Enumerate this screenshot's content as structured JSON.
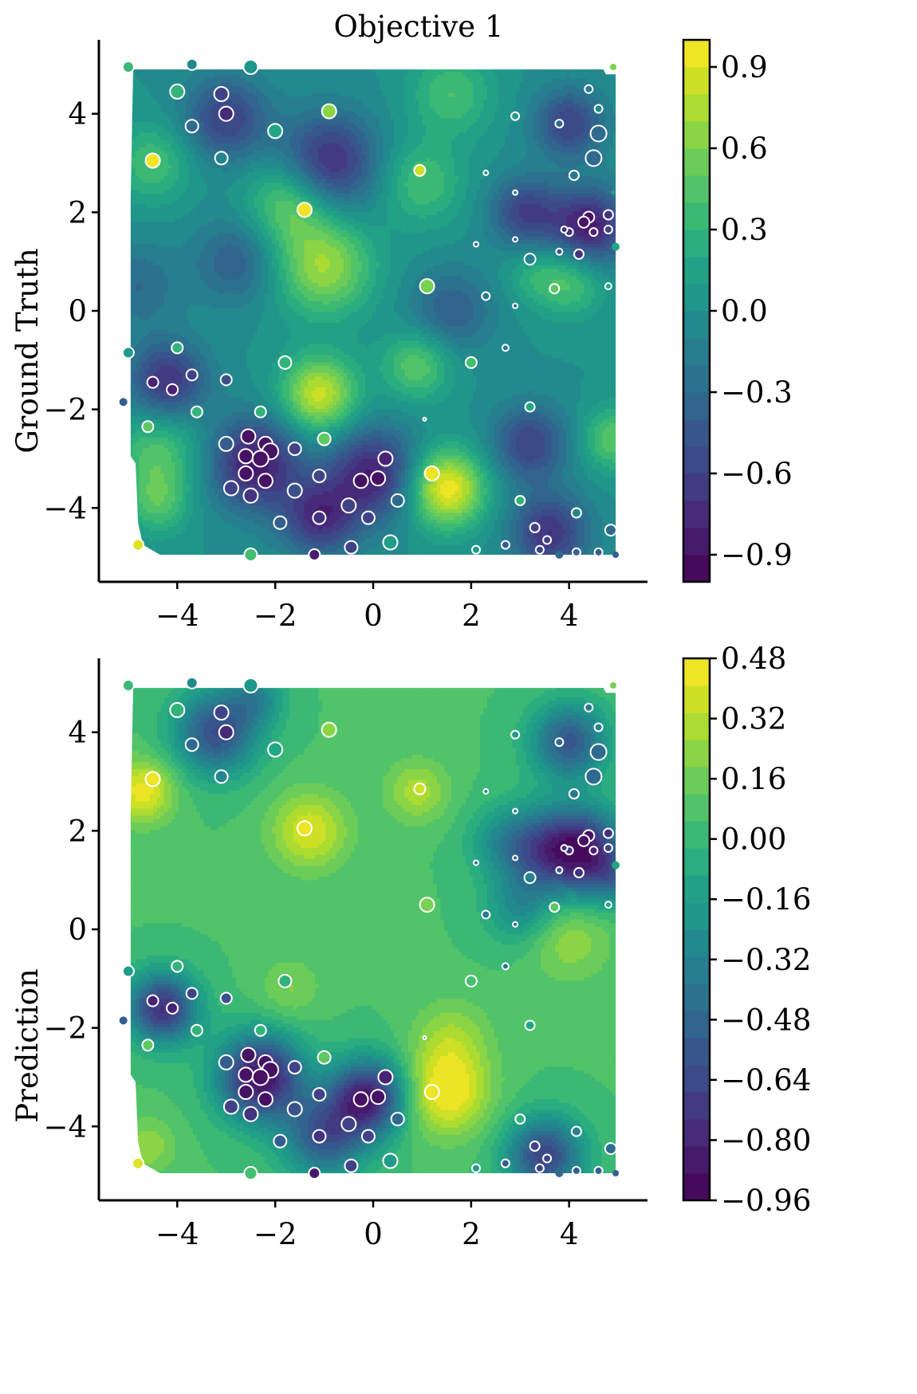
{
  "figure": {
    "title": "Objective 1"
  },
  "chart_data": [
    {
      "type": "heatmap",
      "subtype": "filled-contour-with-scatter",
      "title": "Objective 1",
      "ylabel": "Ground Truth",
      "xlabel": "",
      "xlim": [
        -5.6,
        5.6
      ],
      "ylim": [
        -5.5,
        5.5
      ],
      "xticks": [
        -4,
        -2,
        0,
        2,
        4
      ],
      "xtick_labels": [
        "−4",
        "−2",
        "0",
        "2",
        "4"
      ],
      "yticks": [
        4,
        2,
        0,
        -2,
        -4
      ],
      "ytick_labels": [
        "4",
        "2",
        "0",
        "−2",
        "−4"
      ],
      "colormap": "viridis",
      "colorbar": {
        "min": -1.0,
        "max": 1.0,
        "ticks": [
          0.9,
          0.6,
          0.3,
          0.0,
          -0.3,
          -0.6,
          -0.9
        ],
        "tick_labels": [
          "0.9",
          "0.6",
          "0.3",
          "0.0",
          "−0.3",
          "−0.6",
          "−0.9"
        ]
      },
      "blobs": [
        [
          -0.9,
          3.0,
          -0.75,
          0.7
        ],
        [
          -3.0,
          3.9,
          -0.6,
          0.6
        ],
        [
          -1.0,
          0.9,
          0.7,
          0.7
        ],
        [
          -1.7,
          2.2,
          0.55,
          0.6
        ],
        [
          -1.1,
          -1.7,
          0.85,
          0.55
        ],
        [
          1.5,
          -3.6,
          1.0,
          0.55
        ],
        [
          -2.4,
          -3.1,
          -0.85,
          0.65
        ],
        [
          0.0,
          -3.3,
          -0.8,
          0.65
        ],
        [
          -1.1,
          -4.2,
          -0.7,
          0.55
        ],
        [
          -4.2,
          -1.4,
          -0.7,
          0.55
        ],
        [
          4.4,
          1.7,
          -0.85,
          0.55
        ],
        [
          3.1,
          2.0,
          -0.6,
          0.5
        ],
        [
          4.0,
          3.8,
          -0.6,
          0.5
        ],
        [
          3.2,
          -2.7,
          -0.6,
          0.55
        ],
        [
          3.6,
          -4.5,
          -0.7,
          0.55
        ],
        [
          1.0,
          2.6,
          0.4,
          0.6
        ],
        [
          1.6,
          0.0,
          -0.4,
          0.6
        ],
        [
          4.0,
          0.6,
          0.45,
          0.5
        ],
        [
          0.9,
          -1.1,
          0.5,
          0.5
        ],
        [
          -4.4,
          -2.9,
          0.45,
          0.6
        ],
        [
          -4.4,
          -3.9,
          0.4,
          0.45
        ],
        [
          4.9,
          -2.6,
          0.5,
          0.45
        ],
        [
          -4.5,
          3.0,
          0.4,
          0.55
        ],
        [
          -4.8,
          0.5,
          -0.3,
          0.6
        ],
        [
          -2.8,
          1.0,
          -0.4,
          0.6
        ],
        [
          1.6,
          4.4,
          0.4,
          0.6
        ],
        [
          3.2,
          0.7,
          0.2,
          0.4
        ]
      ],
      "scatter": [
        [
          -5.0,
          4.95,
          0.35,
          7
        ],
        [
          -3.7,
          5.0,
          -0.05,
          7
        ],
        [
          -2.5,
          4.95,
          0.05,
          9
        ],
        [
          4.9,
          4.95,
          0.6,
          4
        ],
        [
          -4.0,
          4.45,
          0.3,
          9
        ],
        [
          -3.1,
          4.4,
          -0.6,
          9
        ],
        [
          -3.0,
          4.0,
          -0.75,
          9
        ],
        [
          -3.7,
          3.75,
          -0.3,
          8
        ],
        [
          -0.9,
          4.05,
          0.65,
          9
        ],
        [
          -2.0,
          3.65,
          0.2,
          9
        ],
        [
          -3.1,
          3.1,
          -0.1,
          8
        ],
        [
          -4.5,
          3.05,
          0.95,
          9
        ],
        [
          0.95,
          2.85,
          0.85,
          7
        ],
        [
          -1.4,
          2.05,
          0.95,
          9
        ],
        [
          4.4,
          4.5,
          -0.2,
          5
        ],
        [
          4.6,
          4.1,
          -0.1,
          5
        ],
        [
          3.8,
          3.8,
          -0.3,
          5
        ],
        [
          2.9,
          3.95,
          0.1,
          5
        ],
        [
          4.6,
          3.6,
          -0.3,
          10
        ],
        [
          4.5,
          3.1,
          -0.3,
          10
        ],
        [
          4.1,
          2.75,
          -0.2,
          6
        ],
        [
          2.3,
          2.8,
          0.0,
          3
        ],
        [
          2.9,
          2.4,
          -0.1,
          3
        ],
        [
          4.9,
          2.4,
          0.1,
          3
        ],
        [
          4.4,
          1.9,
          -0.9,
          7
        ],
        [
          4.3,
          1.8,
          -0.9,
          7
        ],
        [
          4.8,
          1.95,
          -0.7,
          6
        ],
        [
          4.0,
          1.6,
          -0.7,
          5
        ],
        [
          3.9,
          1.65,
          -0.7,
          4
        ],
        [
          4.5,
          1.6,
          -0.8,
          5
        ],
        [
          4.8,
          1.65,
          -0.6,
          5
        ],
        [
          4.2,
          1.15,
          -0.7,
          6
        ],
        [
          3.8,
          1.2,
          -0.4,
          4
        ],
        [
          2.9,
          1.45,
          -0.4,
          3
        ],
        [
          2.1,
          1.35,
          -0.3,
          3
        ],
        [
          4.95,
          1.3,
          0.2,
          5
        ],
        [
          3.2,
          1.05,
          -0.1,
          7
        ],
        [
          3.7,
          0.45,
          0.5,
          6
        ],
        [
          4.8,
          0.5,
          0.2,
          4
        ],
        [
          1.1,
          0.5,
          0.6,
          9
        ],
        [
          2.3,
          0.3,
          -0.2,
          5
        ],
        [
          2.9,
          0.1,
          -0.4,
          3
        ],
        [
          -5.0,
          -0.85,
          0.1,
          7
        ],
        [
          -4.0,
          -0.75,
          0.3,
          7
        ],
        [
          -1.8,
          -1.05,
          0.3,
          8
        ],
        [
          -3.7,
          -1.3,
          -0.6,
          7
        ],
        [
          -3.0,
          -1.4,
          -0.5,
          7
        ],
        [
          -4.5,
          -1.45,
          -0.8,
          7
        ],
        [
          -4.1,
          -1.6,
          -0.8,
          7
        ],
        [
          2.7,
          -0.75,
          -0.2,
          4
        ],
        [
          2.0,
          -1.05,
          0.4,
          7
        ],
        [
          -5.1,
          -1.85,
          -0.4,
          5
        ],
        [
          -3.6,
          -2.05,
          0.3,
          7
        ],
        [
          -2.3,
          -2.05,
          0.3,
          7
        ],
        [
          -4.6,
          -2.35,
          0.5,
          7
        ],
        [
          1.05,
          -2.2,
          0.1,
          2
        ],
        [
          3.2,
          -1.95,
          0.2,
          6
        ],
        [
          -1.0,
          -2.6,
          0.5,
          8
        ],
        [
          -3.0,
          -2.7,
          -0.4,
          9
        ],
        [
          -2.55,
          -2.55,
          -0.9,
          9
        ],
        [
          -2.2,
          -2.7,
          -0.9,
          9
        ],
        [
          -2.1,
          -2.85,
          -0.9,
          10
        ],
        [
          -2.6,
          -2.95,
          -0.9,
          9
        ],
        [
          -2.3,
          -3.0,
          -0.9,
          10
        ],
        [
          -1.6,
          -2.8,
          -0.6,
          8
        ],
        [
          -2.6,
          -3.3,
          -0.9,
          9
        ],
        [
          -2.2,
          -3.45,
          -0.9,
          9
        ],
        [
          -2.5,
          -3.75,
          -0.7,
          9
        ],
        [
          -2.9,
          -3.6,
          -0.6,
          9
        ],
        [
          -1.6,
          -3.65,
          -0.5,
          9
        ],
        [
          -1.1,
          -3.35,
          -0.6,
          8
        ],
        [
          -0.25,
          -3.45,
          -0.9,
          9
        ],
        [
          0.1,
          -3.4,
          -0.9,
          9
        ],
        [
          0.25,
          -3.0,
          -0.8,
          9
        ],
        [
          1.2,
          -3.3,
          0.95,
          9
        ],
        [
          0.5,
          -3.85,
          -0.3,
          8
        ],
        [
          -0.5,
          -3.95,
          -0.6,
          9
        ],
        [
          -0.1,
          -4.2,
          -0.6,
          8
        ],
        [
          -1.1,
          -4.2,
          -0.7,
          8
        ],
        [
          -1.9,
          -4.3,
          -0.4,
          8
        ],
        [
          0.35,
          -4.7,
          0.1,
          9
        ],
        [
          -0.45,
          -4.8,
          -0.6,
          8
        ],
        [
          -4.8,
          -4.75,
          0.9,
          7
        ],
        [
          -2.5,
          -4.95,
          0.4,
          8
        ],
        [
          -1.2,
          -4.95,
          -0.85,
          7
        ],
        [
          2.1,
          -4.85,
          0.1,
          5
        ],
        [
          3.0,
          -3.85,
          0.3,
          6
        ],
        [
          4.15,
          -4.1,
          -0.1,
          6
        ],
        [
          3.3,
          -4.4,
          -0.6,
          6
        ],
        [
          3.55,
          -4.65,
          -0.6,
          5
        ],
        [
          2.7,
          -4.75,
          -0.4,
          5
        ],
        [
          3.4,
          -4.85,
          -0.6,
          5
        ],
        [
          3.8,
          -4.95,
          -0.3,
          5
        ],
        [
          4.15,
          -4.9,
          -0.4,
          5
        ],
        [
          4.6,
          -4.9,
          -0.4,
          5
        ],
        [
          4.85,
          -4.45,
          -0.3,
          7
        ],
        [
          4.95,
          -4.95,
          -0.4,
          4
        ]
      ]
    },
    {
      "type": "heatmap",
      "subtype": "filled-contour-with-scatter",
      "title": "",
      "ylabel": "Prediction",
      "xlabel": "",
      "xlim": [
        -5.6,
        5.6
      ],
      "ylim": [
        -5.5,
        5.5
      ],
      "xticks": [
        -4,
        -2,
        0,
        2,
        4
      ],
      "xtick_labels": [
        "−4",
        "−2",
        "0",
        "2",
        "4"
      ],
      "yticks": [
        4,
        2,
        0,
        -2,
        -4
      ],
      "ytick_labels": [
        "4",
        "2",
        "0",
        "−2",
        "−4"
      ],
      "colormap": "viridis",
      "colorbar": {
        "min": -0.96,
        "max": 0.48,
        "ticks": [
          0.48,
          0.32,
          0.16,
          0.0,
          -0.16,
          -0.32,
          -0.48,
          -0.64,
          -0.8,
          -0.96
        ],
        "tick_labels": [
          "0.48",
          "0.32",
          "0.16",
          "0.00",
          "−0.16",
          "−0.32",
          "−0.48",
          "−0.64",
          "−0.80",
          "−0.96"
        ]
      },
      "base": 0.05,
      "blobs": [
        [
          -4.7,
          2.8,
          0.4,
          0.45
        ],
        [
          -1.3,
          2.0,
          0.35,
          0.55
        ],
        [
          0.9,
          2.8,
          0.25,
          0.45
        ],
        [
          1.5,
          -3.3,
          0.45,
          0.6
        ],
        [
          1.6,
          -2.2,
          0.2,
          0.55
        ],
        [
          4.0,
          -0.2,
          0.2,
          0.6
        ],
        [
          -4.6,
          -4.4,
          0.2,
          0.4
        ],
        [
          -3.2,
          4.0,
          -0.65,
          0.6
        ],
        [
          -2.4,
          4.7,
          -0.3,
          0.4
        ],
        [
          4.3,
          1.6,
          -0.8,
          0.6
        ],
        [
          3.4,
          1.6,
          -0.5,
          0.6
        ],
        [
          4.0,
          3.8,
          -0.6,
          0.55
        ],
        [
          2.6,
          1.8,
          -0.2,
          0.5
        ],
        [
          -4.3,
          -1.6,
          -0.8,
          0.5
        ],
        [
          -2.3,
          -3.0,
          -0.95,
          0.6
        ],
        [
          -0.1,
          -3.4,
          -0.85,
          0.55
        ],
        [
          -1.0,
          -4.2,
          -0.6,
          0.6
        ],
        [
          3.5,
          -4.6,
          -0.7,
          0.55
        ],
        [
          3.0,
          0.4,
          -0.3,
          0.5
        ],
        [
          -1.7,
          -1.2,
          0.15,
          0.45
        ],
        [
          4.9,
          1.0,
          -0.3,
          0.4
        ]
      ]
    }
  ]
}
